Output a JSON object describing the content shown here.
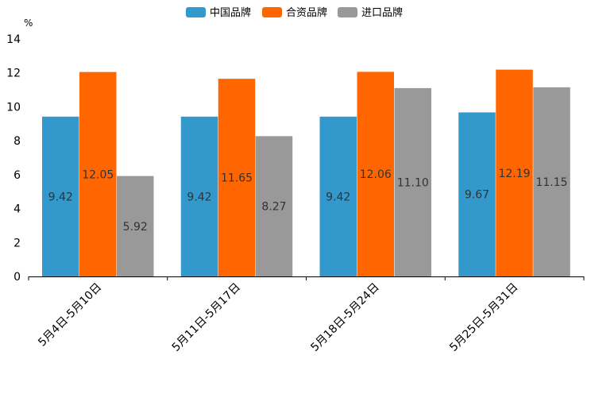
{
  "chart_data": {
    "type": "bar",
    "title": "",
    "ylabel": "%",
    "xlabel": "",
    "ylim": [
      0,
      14
    ],
    "yticks": [
      0,
      2,
      4,
      6,
      8,
      10,
      12,
      14
    ],
    "grid": false,
    "legend_position": "top-center",
    "categories": [
      "5月4日-5月10日",
      "5月11日-5月17日",
      "5月18日-5月24日",
      "5月25日-5月31日"
    ],
    "series": [
      {
        "name": "中国品牌",
        "color": "#3399cc",
        "values": [
          9.42,
          9.42,
          9.42,
          9.67
        ],
        "labels": [
          "9.42",
          "9.42",
          "9.42",
          "9.67"
        ]
      },
      {
        "name": "合资品牌",
        "color": "#ff6600",
        "values": [
          12.05,
          11.65,
          12.06,
          12.19
        ],
        "labels": [
          "12.05",
          "11.65",
          "12.06",
          "12.19"
        ]
      },
      {
        "name": "进口品牌",
        "color": "#999999",
        "values": [
          5.92,
          8.27,
          11.1,
          11.15
        ],
        "labels": [
          "5.92",
          "8.27",
          "11.10",
          "11.15"
        ]
      }
    ]
  }
}
